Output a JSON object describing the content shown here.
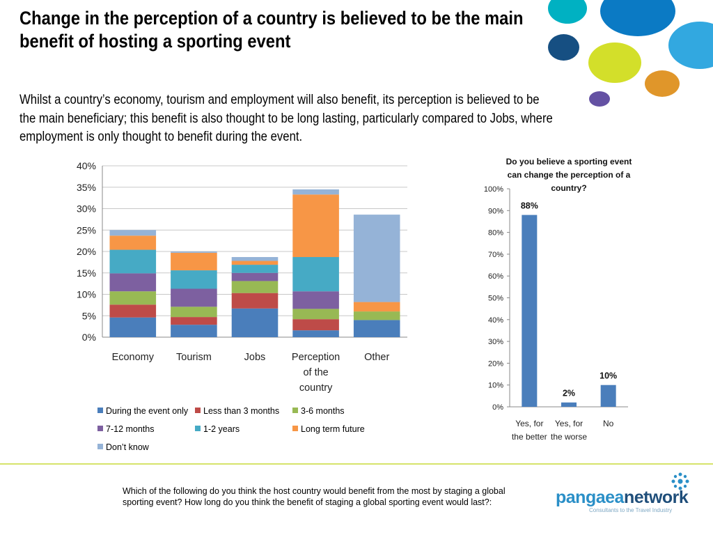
{
  "slide": {
    "title": "Change in the perception of a country is believed to be the main benefit of hosting a sporting event",
    "body": "Whilst a country’s economy, tourism and employment will also benefit, its perception is believed to be the main beneficiary; this benefit is also thought to be long lasting, particularly compared to Jobs, where employment is only thought to benefit during the event.",
    "footnote": "Which of the following do you think the host country would benefit from the most by staging a global sporting event? How long do you think the benefit of staging a global sporting event would last?:",
    "logo": {
      "part1": "pangaea",
      "part2": "network",
      "tagline": "Consultants to the Travel Industry"
    }
  },
  "colors": {
    "accent_rule": "#d6e36a",
    "deco_teal": "#00b1c2",
    "deco_blue": "#0b7ac4",
    "deco_navy": "#164f82",
    "deco_lime": "#d3df2a",
    "deco_sky": "#32a8e0",
    "deco_orange": "#e0962a",
    "deco_purple": "#6451a3",
    "logo_blue": "#2a8fc7",
    "logo_navy": "#1f4e7a"
  },
  "chart_data": [
    {
      "type": "bar",
      "stacked": true,
      "categories": [
        "Economy",
        "Tourism",
        "Jobs",
        "Perception of the country",
        "Other"
      ],
      "category_lines": [
        [
          "Economy"
        ],
        [
          "Tourism"
        ],
        [
          "Jobs"
        ],
        [
          "Perception",
          "of the",
          "country"
        ],
        [
          "Other"
        ]
      ],
      "ylim": [
        0,
        40
      ],
      "yticks": [
        "0%",
        "5%",
        "10%",
        "15%",
        "20%",
        "25%",
        "30%",
        "35%",
        "40%"
      ],
      "grid": true,
      "legend_position": "bottom",
      "series": [
        {
          "name": "During the event only",
          "color": "#4a7ebb",
          "values": [
            4.6,
            2.9,
            6.7,
            1.6,
            4.0
          ]
        },
        {
          "name": "Less than 3 months",
          "color": "#be4b48",
          "values": [
            3.0,
            1.8,
            3.6,
            2.6,
            0.0
          ]
        },
        {
          "name": "3-6 months",
          "color": "#98b954",
          "values": [
            3.1,
            2.4,
            2.8,
            2.4,
            2.0
          ]
        },
        {
          "name": "7-12 months",
          "color": "#7d60a0",
          "values": [
            4.2,
            4.2,
            1.9,
            4.1,
            0.0
          ]
        },
        {
          "name": "1-2 years",
          "color": "#46aac5",
          "values": [
            5.5,
            4.3,
            1.9,
            8.0,
            0.0
          ]
        },
        {
          "name": "Long term future",
          "color": "#f79646",
          "values": [
            3.3,
            4.1,
            0.9,
            14.6,
            2.2
          ]
        },
        {
          "name": "Don’t know",
          "color": "#95b3d7",
          "values": [
            1.3,
            0.3,
            0.9,
            1.2,
            20.4
          ]
        }
      ]
    },
    {
      "type": "bar",
      "title": "Do you believe a sporting event can change the perception of a country?",
      "title_lines": [
        "Do you believe a sporting event",
        "can change the perception of a",
        "country?"
      ],
      "categories": [
        "Yes, for the better",
        "Yes, for the worse",
        "No"
      ],
      "category_lines": [
        [
          "Yes, for",
          "the better"
        ],
        [
          "Yes, for",
          "the worse"
        ],
        [
          "No"
        ]
      ],
      "values": [
        88,
        2,
        10
      ],
      "data_labels": [
        "88%",
        "2%",
        "10%"
      ],
      "color": "#4a7ebb",
      "ylim": [
        0,
        100
      ],
      "yticks": [
        "0%",
        "10%",
        "20%",
        "30%",
        "40%",
        "50%",
        "60%",
        "70%",
        "80%",
        "90%",
        "100%"
      ],
      "grid": false
    }
  ]
}
